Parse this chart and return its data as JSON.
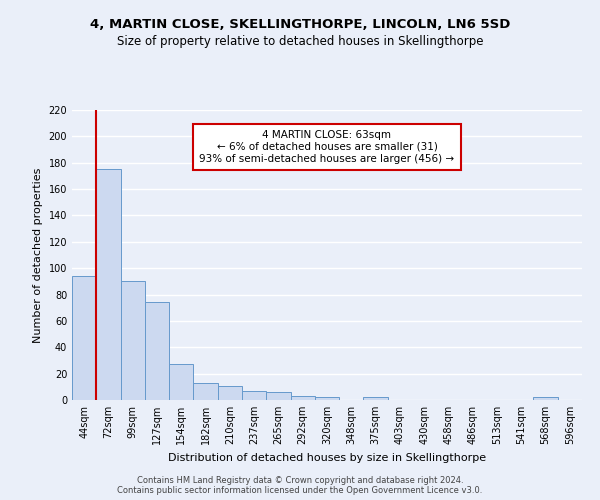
{
  "title1": "4, MARTIN CLOSE, SKELLINGTHORPE, LINCOLN, LN6 5SD",
  "title2": "Size of property relative to detached houses in Skellingthorpe",
  "xlabel": "Distribution of detached houses by size in Skellingthorpe",
  "ylabel": "Number of detached properties",
  "bar_color": "#ccd9f0",
  "bar_edge_color": "#6699cc",
  "categories": [
    "44sqm",
    "72sqm",
    "99sqm",
    "127sqm",
    "154sqm",
    "182sqm",
    "210sqm",
    "237sqm",
    "265sqm",
    "292sqm",
    "320sqm",
    "348sqm",
    "375sqm",
    "403sqm",
    "430sqm",
    "458sqm",
    "486sqm",
    "513sqm",
    "541sqm",
    "568sqm",
    "596sqm"
  ],
  "values": [
    94,
    175,
    90,
    74,
    27,
    13,
    11,
    7,
    6,
    3,
    2,
    0,
    2,
    0,
    0,
    0,
    0,
    0,
    0,
    2,
    0
  ],
  "ylim": [
    0,
    220
  ],
  "yticks": [
    0,
    20,
    40,
    60,
    80,
    100,
    120,
    140,
    160,
    180,
    200,
    220
  ],
  "annotation_line1": "4 MARTIN CLOSE: 63sqm",
  "annotation_line2": "← 6% of detached houses are smaller (31)",
  "annotation_line3": "93% of semi-detached houses are larger (456) →",
  "vline_x": 0.5,
  "background_color": "#eaeff9",
  "footer_text": "Contains HM Land Registry data © Crown copyright and database right 2024.\nContains public sector information licensed under the Open Government Licence v3.0.",
  "grid_color": "#ffffff",
  "annotation_box_color": "#ffffff",
  "annotation_box_edge": "#cc0000",
  "vline_color": "#cc0000",
  "title1_fontsize": 9.5,
  "title2_fontsize": 8.5,
  "ylabel_fontsize": 8,
  "xlabel_fontsize": 8,
  "tick_fontsize": 7,
  "annotation_fontsize": 7.5,
  "footer_fontsize": 6
}
